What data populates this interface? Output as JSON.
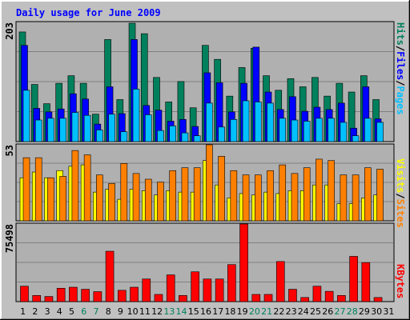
{
  "colors": {
    "background": "#c0c0c0",
    "plot_bg": "#b0b0b0",
    "title": "#0000ff",
    "hits": "#00805c",
    "files": "#0000ff",
    "pages": "#00c0ff",
    "visits": "#ffff00",
    "sites": "#ff8000",
    "kbytes": "#ff0000",
    "weekend_day": "#00805c",
    "weekday": "#000000"
  },
  "chart_data": [
    {
      "type": "bar",
      "title": "Daily usage for June 2009",
      "y_max_label": "203",
      "legend": [
        "Pages",
        "Files",
        "Hits"
      ],
      "categories": [
        "1",
        "2",
        "3",
        "4",
        "5",
        "6",
        "7",
        "8",
        "9",
        "10",
        "11",
        "12",
        "13",
        "14",
        "15",
        "16",
        "17",
        "18",
        "19",
        "20",
        "21",
        "22",
        "23",
        "24",
        "25",
        "26",
        "27",
        "28",
        "29",
        "30",
        "31"
      ],
      "weekend_days": [
        "6",
        "7",
        "13",
        "14",
        "20",
        "21",
        "27",
        "28"
      ],
      "ylim": [
        0,
        203
      ],
      "series": [
        {
          "name": "Hits",
          "values": [
            188,
            98,
            65,
            100,
            113,
            100,
            47,
            175,
            72,
            203,
            185,
            110,
            68,
            103,
            58,
            165,
            141,
            78,
            127,
            160,
            113,
            88,
            108,
            94,
            110,
            78,
            100,
            85,
            113,
            72,
            0
          ]
        },
        {
          "name": "Files",
          "values": [
            165,
            57,
            51,
            56,
            82,
            73,
            30,
            94,
            48,
            175,
            62,
            54,
            35,
            38,
            26,
            118,
            101,
            51,
            100,
            162,
            85,
            55,
            77,
            52,
            59,
            55,
            66,
            23,
            94,
            39,
            0
          ]
        },
        {
          "name": "Pages",
          "values": [
            88,
            37,
            40,
            40,
            50,
            45,
            20,
            47,
            17,
            90,
            46,
            19,
            27,
            15,
            10,
            66,
            25,
            38,
            70,
            68,
            66,
            40,
            37,
            35,
            40,
            40,
            33,
            10,
            40,
            33,
            0
          ]
        }
      ]
    },
    {
      "type": "bar",
      "y_max_label": "53",
      "legend": [
        "Sites",
        "Visits"
      ],
      "categories": [
        "1",
        "2",
        "3",
        "4",
        "5",
        "6",
        "7",
        "8",
        "9",
        "10",
        "11",
        "12",
        "13",
        "14",
        "15",
        "16",
        "17",
        "18",
        "19",
        "20",
        "21",
        "22",
        "23",
        "24",
        "25",
        "26",
        "27",
        "28",
        "29",
        "30",
        "31"
      ],
      "ylim": [
        0,
        53
      ],
      "series": [
        {
          "name": "Visits",
          "values": [
            30,
            34,
            30,
            35,
            38,
            39,
            20,
            22,
            15,
            22,
            21,
            18,
            21,
            20,
            20,
            42,
            25,
            16,
            19,
            18,
            20,
            19,
            21,
            21,
            25,
            25,
            12,
            12,
            16,
            18,
            0
          ]
        },
        {
          "name": "Sites",
          "values": [
            44,
            44,
            30,
            31,
            49,
            46,
            32,
            26,
            40,
            33,
            29,
            27,
            35,
            37,
            37,
            53,
            45,
            35,
            32,
            32,
            35,
            39,
            33,
            37,
            43,
            42,
            32,
            32,
            37,
            36,
            0
          ]
        }
      ]
    },
    {
      "type": "bar",
      "y_max_label": "75498",
      "legend": [
        "KBytes"
      ],
      "categories": [
        "1",
        "2",
        "3",
        "4",
        "5",
        "6",
        "7",
        "8",
        "9",
        "10",
        "11",
        "12",
        "13",
        "14",
        "15",
        "16",
        "17",
        "18",
        "19",
        "20",
        "21",
        "22",
        "23",
        "24",
        "25",
        "26",
        "27",
        "28",
        "29",
        "30",
        "31"
      ],
      "ylim": [
        0,
        75498
      ],
      "series": [
        {
          "name": "KBytes",
          "values": [
            15000,
            6000,
            5000,
            13000,
            14000,
            12000,
            9700,
            49000,
            11000,
            14000,
            22000,
            7000,
            26000,
            6000,
            29000,
            22000,
            22000,
            36000,
            75498,
            7000,
            7000,
            39000,
            12000,
            4000,
            15000,
            10000,
            6000,
            44000,
            38000,
            4000,
            0
          ]
        }
      ]
    }
  ]
}
